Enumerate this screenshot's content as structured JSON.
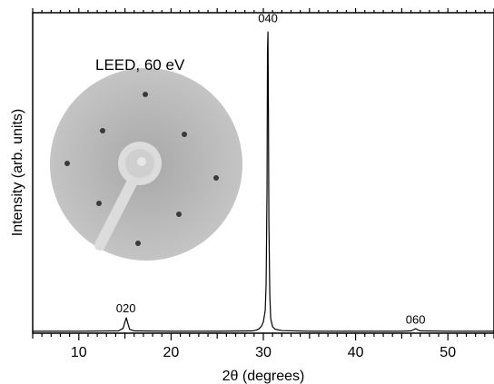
{
  "chart_data": {
    "type": "line",
    "title": "",
    "xlabel": "2θ (degrees)",
    "ylabel": "Intensity (arb. units)",
    "xlim": [
      5,
      55
    ],
    "ylim": [
      0,
      100
    ],
    "x_ticks": [
      10,
      20,
      30,
      40,
      50
    ],
    "x_tick_labels": [
      "10",
      "20",
      "30",
      "40",
      "50"
    ],
    "minor_tick_step": 1,
    "y_tick_labels": false,
    "grid": false,
    "series": [
      {
        "x": [
          5,
          10,
          14.3,
          14.8,
          15.0,
          15.15,
          15.3,
          15.5,
          16,
          20,
          25,
          28.8,
          29.2,
          29.5,
          29.8,
          30.0,
          30.2,
          30.3,
          30.4,
          30.45,
          30.5,
          30.55,
          30.6,
          30.7,
          30.8,
          31.0,
          31.3,
          32,
          35,
          40,
          45,
          46.0,
          46.3,
          46.5,
          46.7,
          47.0,
          50,
          55
        ],
        "y": [
          0.6,
          0.6,
          0.7,
          1.5,
          3.5,
          4.8,
          3.2,
          1.2,
          0.7,
          0.6,
          0.6,
          0.7,
          0.9,
          1.3,
          2.2,
          3.5,
          7,
          15,
          45,
          88,
          94,
          70,
          35,
          12,
          4.5,
          2,
          1.2,
          0.8,
          0.6,
          0.6,
          0.6,
          0.7,
          1.1,
          1.4,
          1.1,
          0.7,
          0.6,
          0.6
        ]
      }
    ],
    "annotations": [
      {
        "text": "020",
        "x": 15.1,
        "y": 6.5
      },
      {
        "text": "040",
        "x": 30.5,
        "y": 97
      },
      {
        "text": "060",
        "x": 46.5,
        "y": 3
      }
    ],
    "inset": {
      "label": "LEED, 60 eV",
      "image": "LEED diffraction pattern"
    }
  }
}
